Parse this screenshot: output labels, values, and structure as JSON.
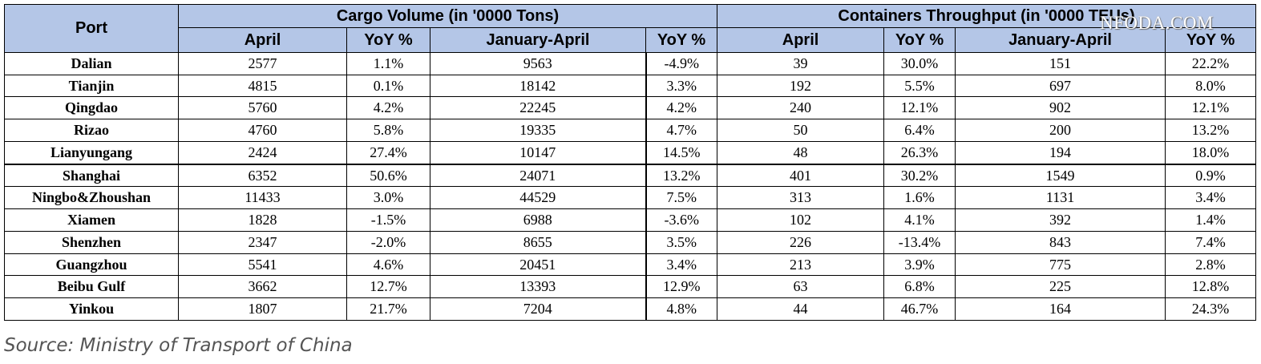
{
  "table": {
    "port_header": "Port",
    "groups": [
      "Cargo Volume (in '0000 Tons)",
      "Containers Throughput (in '0000 TEUs)"
    ],
    "subheaders": [
      "April",
      "YoY %",
      "January-April",
      "YoY %",
      "April",
      "YoY %",
      "January-April",
      "YoY %"
    ],
    "rows": [
      {
        "port": "Dalian",
        "values": [
          "2577",
          "1.1%",
          "9563",
          "-4.9%",
          "39",
          "30.0%",
          "151",
          "22.2%"
        ]
      },
      {
        "port": "Tianjin",
        "values": [
          "4815",
          "0.1%",
          "18142",
          "3.3%",
          "192",
          "5.5%",
          "697",
          "8.0%"
        ]
      },
      {
        "port": "Qingdao",
        "values": [
          "5760",
          "4.2%",
          "22245",
          "4.2%",
          "240",
          "12.1%",
          "902",
          "12.1%"
        ]
      },
      {
        "port": "Rizao",
        "values": [
          "4760",
          "5.8%",
          "19335",
          "4.7%",
          "50",
          "6.4%",
          "200",
          "13.2%"
        ]
      },
      {
        "port": "Lianyungang",
        "values": [
          "2424",
          "27.4%",
          "10147",
          "14.5%",
          "48",
          "26.3%",
          "194",
          "18.0%"
        ]
      },
      {
        "port": "Shanghai",
        "values": [
          "6352",
          "50.6%",
          "24071",
          "13.2%",
          "401",
          "30.2%",
          "1549",
          "0.9%"
        ]
      },
      {
        "port": "Ningbo&Zhoushan",
        "values": [
          "11433",
          "3.0%",
          "44529",
          "7.5%",
          "313",
          "1.6%",
          "1131",
          "3.4%"
        ]
      },
      {
        "port": "Xiamen",
        "values": [
          "1828",
          "-1.5%",
          "6988",
          "-3.6%",
          "102",
          "4.1%",
          "392",
          "1.4%"
        ]
      },
      {
        "port": "Shenzhen",
        "values": [
          "2347",
          "-2.0%",
          "8655",
          "3.5%",
          "226",
          "-13.4%",
          "843",
          "7.4%"
        ]
      },
      {
        "port": "Guangzhou",
        "values": [
          "5541",
          "4.6%",
          "20451",
          "3.4%",
          "213",
          "3.9%",
          "775",
          "2.8%"
        ]
      },
      {
        "port": "Beibu Gulf",
        "values": [
          "3662",
          "12.7%",
          "13393",
          "12.9%",
          "63",
          "6.8%",
          "225",
          "12.8%"
        ]
      },
      {
        "port": "Yinkou",
        "values": [
          "1807",
          "21.7%",
          "7204",
          "4.8%",
          "44",
          "46.7%",
          "164",
          "24.3%"
        ]
      }
    ]
  },
  "watermark": "NFODA.COM",
  "source": "Source: Ministry of Transport of China",
  "colors": {
    "header_bg": "#b4c6e7",
    "source_text": "#555555"
  }
}
